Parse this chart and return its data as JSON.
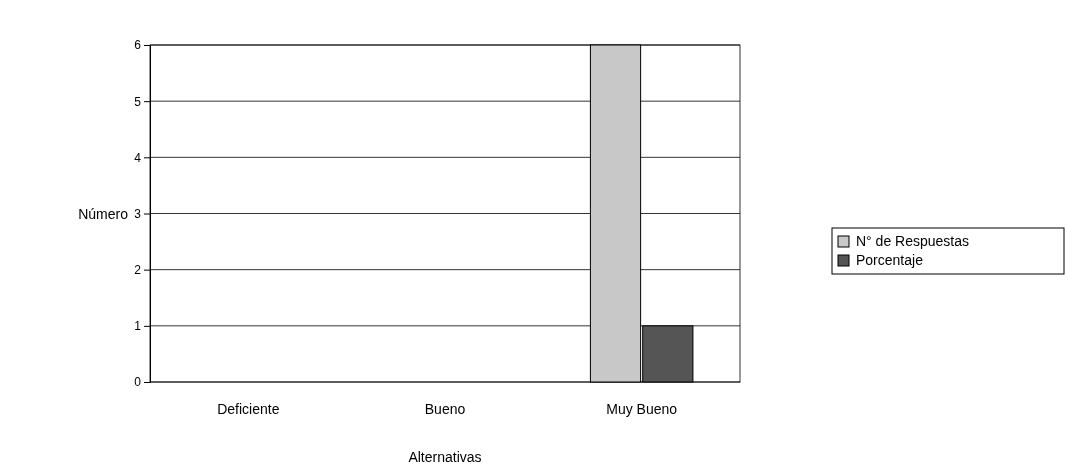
{
  "chart_data": {
    "type": "bar",
    "xlabel": "Alternativas",
    "ylabel": "Número",
    "categories": [
      "Deficiente",
      "Bueno",
      "Muy Bueno"
    ],
    "series": [
      {
        "name": "N° de Respuestas",
        "color": "#c8c8c8",
        "values": [
          0,
          0,
          6
        ]
      },
      {
        "name": "Porcentaje",
        "color": "#555555",
        "values": [
          0,
          0,
          1
        ]
      }
    ],
    "ylim": [
      0,
      6
    ],
    "yticks": [
      0,
      1,
      2,
      3,
      4,
      5,
      6
    ],
    "grid": "y",
    "legend": "right"
  }
}
